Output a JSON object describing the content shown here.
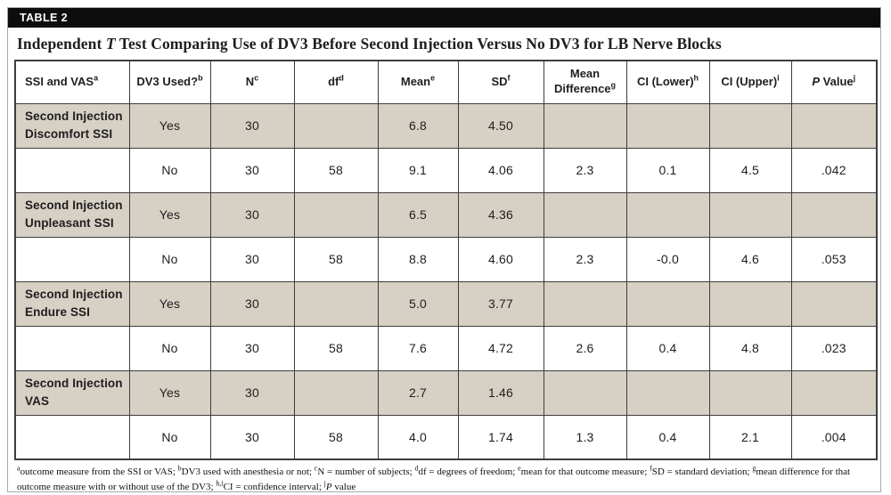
{
  "table_label": "TABLE 2",
  "title": {
    "part1": "Independent ",
    "part2": "T",
    "part3": " Test Comparing Use of DV3 Before Second Injection Versus No DV3 for LB Nerve Blocks"
  },
  "table": {
    "columns": [
      {
        "label": "SSI and VAS",
        "sup": "a"
      },
      {
        "label": "DV3 Used?",
        "sup": "b"
      },
      {
        "label": "N",
        "sup": "c"
      },
      {
        "label": "df",
        "sup": "d"
      },
      {
        "label": "Mean",
        "sup": "e"
      },
      {
        "label": "SD",
        "sup": "f"
      },
      {
        "label": "Mean Difference",
        "sup": "g"
      },
      {
        "label": "CI (Lower)",
        "sup": "h"
      },
      {
        "label": "CI (Upper)",
        "sup": "i"
      },
      {
        "label_italic": "P",
        "label_rest": " Value",
        "sup": "j"
      }
    ],
    "rows": [
      {
        "group": "Second Injection Discomfort SSI",
        "shaded": true,
        "cells": [
          "Yes",
          "30",
          "",
          "6.8",
          "4.50",
          "",
          "",
          "",
          ""
        ]
      },
      {
        "group": "",
        "shaded": false,
        "cells": [
          "No",
          "30",
          "58",
          "9.1",
          "4.06",
          "2.3",
          "0.1",
          "4.5",
          ".042"
        ]
      },
      {
        "group": "Second Injection Unpleasant SSI",
        "shaded": true,
        "cells": [
          "Yes",
          "30",
          "",
          "6.5",
          "4.36",
          "",
          "",
          "",
          ""
        ]
      },
      {
        "group": "",
        "shaded": false,
        "cells": [
          "No",
          "30",
          "58",
          "8.8",
          "4.60",
          "2.3",
          "-0.0",
          "4.6",
          ".053"
        ]
      },
      {
        "group": "Second Injection Endure SSI",
        "shaded": true,
        "cells": [
          "Yes",
          "30",
          "",
          "5.0",
          "3.77",
          "",
          "",
          "",
          ""
        ]
      },
      {
        "group": "",
        "shaded": false,
        "cells": [
          "No",
          "30",
          "58",
          "7.6",
          "4.72",
          "2.6",
          "0.4",
          "4.8",
          ".023"
        ]
      },
      {
        "group": "Second Injection VAS",
        "shaded": true,
        "cells": [
          "Yes",
          "30",
          "",
          "2.7",
          "1.46",
          "",
          "",
          "",
          ""
        ]
      },
      {
        "group": "",
        "shaded": false,
        "cells": [
          "No",
          "30",
          "58",
          "4.0",
          "1.74",
          "1.3",
          "0.4",
          "2.1",
          ".004"
        ]
      }
    ]
  },
  "footnotes": [
    {
      "sup": "a",
      "text": "outcome measure from the SSI or VAS; "
    },
    {
      "sup": "b",
      "text": "DV3 used with anesthesia or not; "
    },
    {
      "sup": "c",
      "text": "N = number of subjects; "
    },
    {
      "sup": "d",
      "text": "df = degrees of freedom; "
    },
    {
      "sup": "e",
      "text": "mean for that outcome measure; "
    },
    {
      "sup": "f",
      "text": "SD = standard deviation; "
    },
    {
      "sup": "g",
      "text": "mean difference for that outcome measure with or without use of the DV3; "
    },
    {
      "sup": "h,i",
      "text": "CI = confidence interval; "
    },
    {
      "sup": "j",
      "italic": "P",
      "text": " value"
    }
  ]
}
